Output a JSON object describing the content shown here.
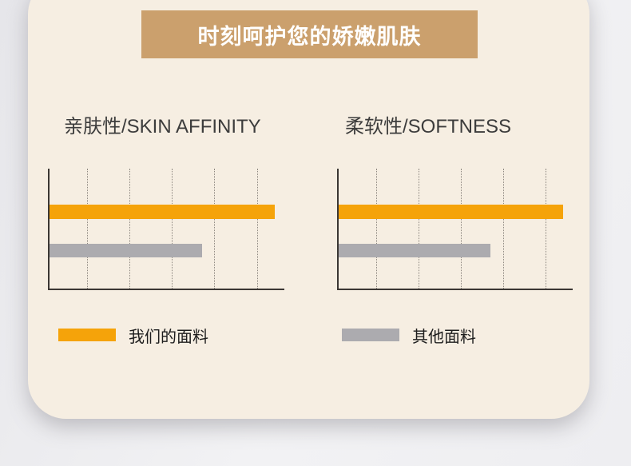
{
  "banner": {
    "title": "时刻呵护您的娇嫩肌肤"
  },
  "charts_section": {
    "legend": [
      {
        "label": "我们的面料",
        "color": "#F5A30A"
      },
      {
        "label": "其他面料",
        "color": "#ACABAF"
      }
    ]
  },
  "chart_data": [
    {
      "type": "bar",
      "orientation": "horizontal",
      "title": "亲肤性/SKIN AFFINITY",
      "categories": [
        "我们的面料",
        "其他面料"
      ],
      "values": [
        96,
        65
      ],
      "xlim": [
        0,
        100
      ],
      "series_colors": [
        "#F5A30A",
        "#ACABAF"
      ],
      "gridline_count": 5,
      "grid_style": "dotted-vertical",
      "axis_tick_labels": "none",
      "legend_position": "below"
    },
    {
      "type": "bar",
      "orientation": "horizontal",
      "title": "柔软性/SOFTNESS",
      "categories": [
        "我们的面料",
        "其他面料"
      ],
      "values": [
        96,
        65
      ],
      "xlim": [
        0,
        100
      ],
      "series_colors": [
        "#F5A30A",
        "#ACABAF"
      ],
      "gridline_count": 5,
      "grid_style": "dotted-vertical",
      "axis_tick_labels": "none",
      "legend_position": "below"
    }
  ],
  "colors": {
    "banner_bg": "#CBA06D",
    "banner_text": "#FFFFFF",
    "card_bg": "#F6EEE2",
    "outer_bg": "#EFEFF1",
    "bar_primary": "#F5A30A",
    "bar_secondary": "#ACABAF",
    "axis": "#3B3734",
    "gridline": "#8D8780",
    "title_text": "#3C3C3C",
    "legend_text": "#1D1D1D"
  }
}
